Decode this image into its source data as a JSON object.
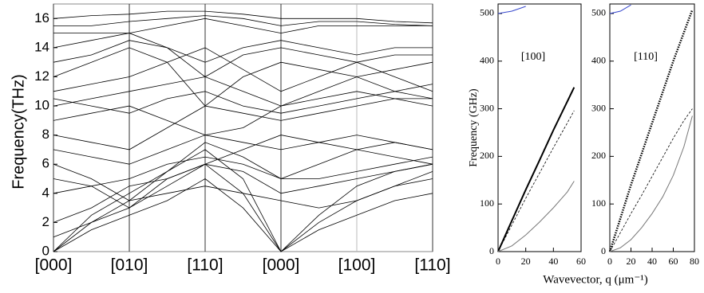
{
  "chart_data": [
    {
      "type": "line",
      "y_label": "Frequency(THz)",
      "x": [
        0,
        0.5,
        1,
        1.5,
        2,
        2.5,
        3,
        3.5,
        4,
        4.5,
        5
      ],
      "xlim": [
        0,
        5
      ],
      "ylim": [
        0,
        17
      ],
      "xticks": [
        {
          "value": 0,
          "label": "[000]"
        },
        {
          "value": 1,
          "label": "[010]"
        },
        {
          "value": 2,
          "label": "[110]"
        },
        {
          "value": 3,
          "label": "[000]"
        },
        {
          "value": 4,
          "label": "[100]"
        },
        {
          "value": 5,
          "label": "[110]"
        }
      ],
      "yticks": [
        0,
        2,
        4,
        6,
        8,
        10,
        12,
        14,
        16
      ],
      "grid": true,
      "series": [
        {
          "color": "#000000",
          "style": "solid",
          "values": [
            0,
            1.5,
            2.5,
            3.5,
            5,
            3,
            0,
            1.5,
            2.5,
            3.5,
            4
          ]
        },
        {
          "color": "#000000",
          "style": "solid",
          "values": [
            0,
            2,
            3,
            5,
            6,
            4,
            0,
            2,
            3.5,
            4.5,
            5
          ]
        },
        {
          "color": "#000000",
          "style": "solid",
          "values": [
            0,
            2.5,
            4,
            5.5,
            7,
            5,
            0,
            2.5,
            4.5,
            5.5,
            6
          ]
        },
        {
          "color": "#000000",
          "style": "solid",
          "values": [
            2,
            3,
            4.5,
            5,
            6,
            5.5,
            4,
            4.5,
            5,
            5.5,
            6
          ]
        },
        {
          "color": "#000000",
          "style": "solid",
          "values": [
            4,
            4.5,
            5,
            6,
            6.5,
            6,
            5,
            5,
            5.5,
            6,
            6.5
          ]
        },
        {
          "color": "#000000",
          "style": "solid",
          "values": [
            5,
            4.5,
            3,
            4.5,
            6,
            7,
            8,
            7.5,
            7,
            6.5,
            6
          ]
        },
        {
          "color": "#000000",
          "style": "solid",
          "values": [
            6,
            5,
            3.5,
            5.5,
            7.5,
            6.5,
            5,
            6,
            7,
            7.5,
            7
          ]
        },
        {
          "color": "#000000",
          "style": "solid",
          "values": [
            7,
            6.5,
            6,
            7,
            8,
            7.5,
            7,
            7.5,
            8,
            7.5,
            7
          ]
        },
        {
          "color": "#000000",
          "style": "solid",
          "values": [
            8,
            7.5,
            7,
            8.5,
            10,
            9.5,
            9,
            9.5,
            10,
            10.5,
            10
          ]
        },
        {
          "color": "#000000",
          "style": "solid",
          "values": [
            9,
            9.5,
            10,
            9,
            8,
            8.5,
            10,
            10.5,
            11,
            10.5,
            10.5
          ]
        },
        {
          "color": "#000000",
          "style": "solid",
          "values": [
            10,
            10.5,
            11,
            11.5,
            12,
            11,
            10,
            11,
            12,
            11,
            10.5
          ]
        },
        {
          "color": "#000000",
          "style": "solid",
          "values": [
            11,
            11.5,
            12,
            13,
            14,
            12.5,
            11,
            12,
            13,
            12,
            11
          ]
        },
        {
          "color": "#000000",
          "style": "solid",
          "values": [
            12,
            13,
            14,
            13,
            10,
            12,
            13,
            12.5,
            12,
            12.5,
            13
          ]
        },
        {
          "color": "#000000",
          "style": "solid",
          "values": [
            13,
            13.5,
            14.5,
            14,
            12,
            13.5,
            14,
            13.5,
            13,
            13.5,
            13.5
          ]
        },
        {
          "color": "#000000",
          "style": "solid",
          "values": [
            14,
            14.5,
            15,
            14,
            13,
            14,
            14.5,
            14,
            13.5,
            14,
            14
          ]
        },
        {
          "color": "#000000",
          "style": "solid",
          "values": [
            15,
            15,
            15,
            15.5,
            16,
            15.5,
            15,
            15.5,
            15.5,
            15.5,
            15.5
          ]
        },
        {
          "color": "#000000",
          "style": "solid",
          "values": [
            15.5,
            15.5,
            15.8,
            16,
            16.2,
            16,
            15.5,
            15.8,
            15.8,
            15.6,
            15.5
          ]
        },
        {
          "color": "#000000",
          "style": "solid",
          "values": [
            16,
            16.2,
            16.3,
            16.5,
            16.5,
            16.3,
            16,
            16,
            16,
            15.8,
            15.7
          ]
        },
        {
          "color": "#000000",
          "style": "solid",
          "values": [
            1,
            2,
            3.5,
            4,
            4.5,
            4,
            3.5,
            3,
            3.5,
            4.5,
            5.5
          ]
        },
        {
          "color": "#000000",
          "style": "solid",
          "values": [
            10.5,
            10,
            9.5,
            10.5,
            11,
            10,
            9.5,
            10,
            10.5,
            11,
            11.5
          ]
        }
      ]
    },
    {
      "type": "line",
      "y_label": "Frequency (GHz)",
      "x_label": "Wavevector, q (μm⁻¹)",
      "annotation": "[100]",
      "x": [
        0,
        10,
        20,
        30,
        40,
        50,
        55
      ],
      "xlim": [
        0,
        60
      ],
      "ylim": [
        0,
        520
      ],
      "xticks": [
        0,
        20,
        40,
        60
      ],
      "yticks": [
        0,
        100,
        200,
        300,
        400,
        500
      ],
      "series": [
        {
          "color": "#000000",
          "style": "solid",
          "width": 2,
          "values": [
            0,
            65,
            130,
            192,
            255,
            315,
            345
          ]
        },
        {
          "color": "#000000",
          "style": "dashed",
          "width": 0.8,
          "values": [
            0,
            56,
            112,
            165,
            218,
            270,
            296
          ]
        },
        {
          "color": "#777777",
          "style": "solid",
          "width": 1,
          "values": [
            0,
            12,
            35,
            62,
            92,
            125,
            148
          ]
        },
        {
          "color": "#3344cc",
          "style": "solid",
          "width": 1,
          "values": [
            500,
            505,
            515,
            null,
            null,
            null,
            null
          ]
        }
      ]
    },
    {
      "type": "line",
      "annotation": "[110]",
      "x": [
        0,
        10,
        20,
        30,
        40,
        50,
        60,
        70,
        78
      ],
      "xlim": [
        0,
        80
      ],
      "ylim": [
        0,
        520
      ],
      "xticks": [
        0,
        20,
        40,
        60,
        80
      ],
      "yticks": [
        0,
        100,
        200,
        300,
        400,
        500
      ],
      "series": [
        {
          "color": "#000000",
          "style": "dotted",
          "width": 2.5,
          "values": [
            0,
            70,
            140,
            205,
            270,
            335,
            400,
            460,
            508
          ]
        },
        {
          "color": "#000000",
          "style": "dashed",
          "width": 0.8,
          "values": [
            0,
            40,
            80,
            118,
            158,
            198,
            238,
            275,
            300
          ]
        },
        {
          "color": "#777777",
          "style": "solid",
          "width": 1,
          "values": [
            0,
            8,
            25,
            50,
            80,
            115,
            160,
            220,
            285
          ]
        },
        {
          "color": "#3344cc",
          "style": "solid",
          "width": 1,
          "values": [
            500,
            505,
            518,
            null,
            null,
            null,
            null,
            null,
            null
          ]
        }
      ]
    }
  ]
}
